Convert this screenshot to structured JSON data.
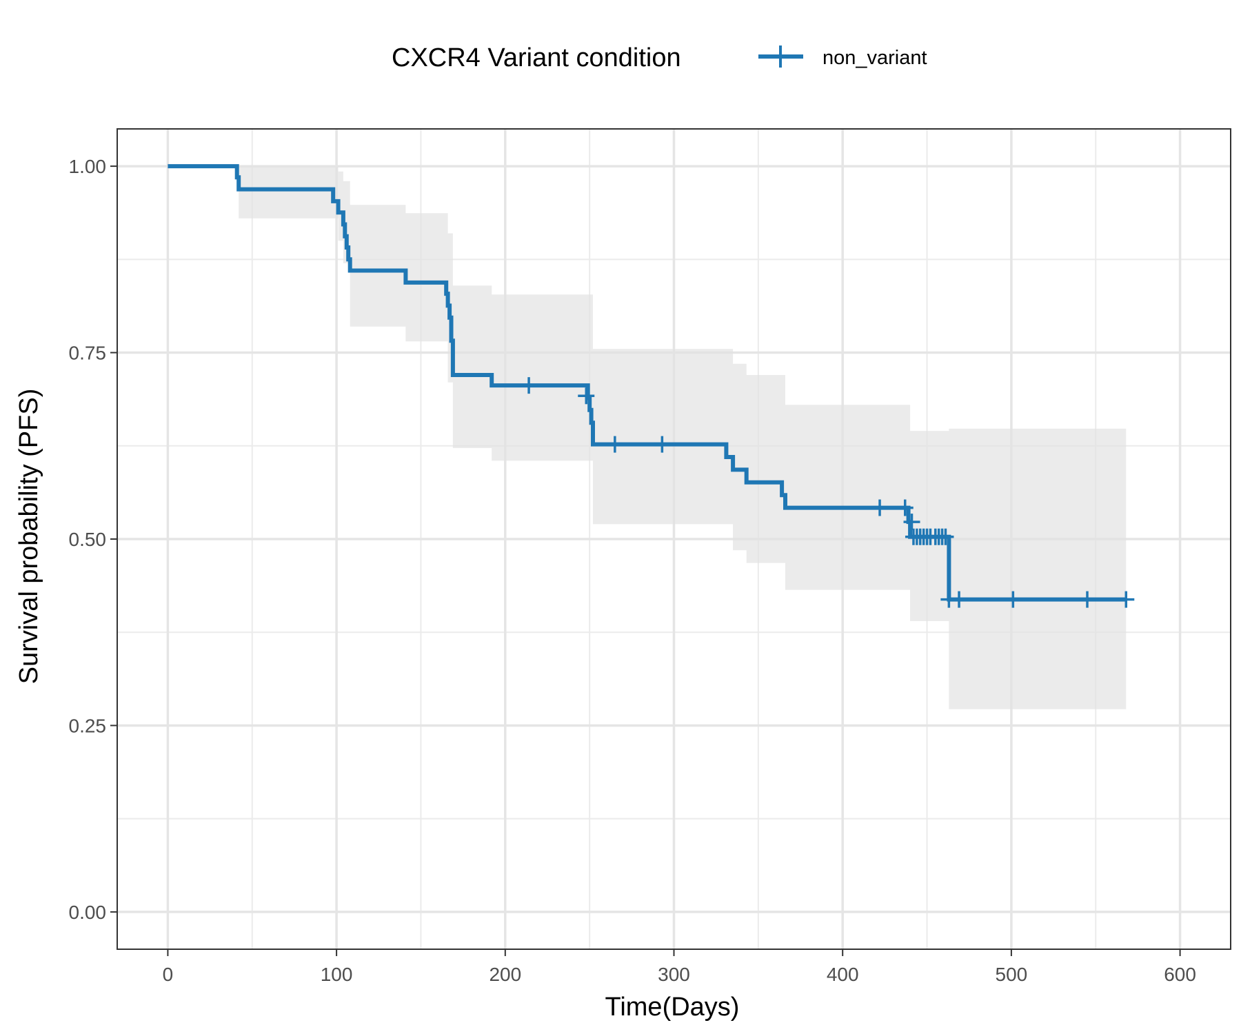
{
  "chart_data": {
    "type": "line",
    "subtype": "kaplan-meier-step",
    "xlabel": "Time(Days)",
    "ylabel": "Survival probability (PFS)",
    "xlim": [
      -30,
      630
    ],
    "ylim": [
      -0.05,
      1.05
    ],
    "x_ticks": [
      0,
      100,
      200,
      300,
      400,
      500,
      600
    ],
    "x_tick_labels": [
      "0",
      "100",
      "200",
      "300",
      "400",
      "500",
      "600"
    ],
    "y_ticks": [
      0,
      0.25,
      0.5,
      0.75,
      1.0
    ],
    "y_tick_labels": [
      "0.00",
      "0.25",
      "0.50",
      "0.75",
      "1.00"
    ],
    "grid": true,
    "legend": {
      "title": "CXCR4 Variant condition",
      "position": "top",
      "entries": [
        {
          "label": "non_variant",
          "color": "#1f77b4"
        }
      ]
    },
    "series": [
      {
        "name": "non_variant",
        "color": "#1f77b4",
        "steps": [
          [
            0,
            1.0
          ],
          [
            40,
            1.0
          ],
          [
            41,
            0.985
          ],
          [
            42,
            0.969
          ],
          [
            97,
            0.969
          ],
          [
            98,
            0.953
          ],
          [
            101,
            0.938
          ],
          [
            104,
            0.922
          ],
          [
            105,
            0.906
          ],
          [
            106,
            0.891
          ],
          [
            107,
            0.875
          ],
          [
            108,
            0.86
          ],
          [
            140,
            0.86
          ],
          [
            141,
            0.844
          ],
          [
            164,
            0.844
          ],
          [
            165,
            0.829
          ],
          [
            166,
            0.813
          ],
          [
            167,
            0.797
          ],
          [
            168,
            0.766
          ],
          [
            169,
            0.72
          ],
          [
            191,
            0.72
          ],
          [
            192,
            0.706
          ],
          [
            248,
            0.706
          ],
          [
            249,
            0.689
          ],
          [
            250,
            0.673
          ],
          [
            251,
            0.656
          ],
          [
            252,
            0.627
          ],
          [
            330,
            0.627
          ],
          [
            331,
            0.61
          ],
          [
            335,
            0.593
          ],
          [
            343,
            0.576
          ],
          [
            363,
            0.576
          ],
          [
            364,
            0.559
          ],
          [
            366,
            0.542
          ],
          [
            437,
            0.542
          ],
          [
            439,
            0.523
          ],
          [
            440,
            0.503
          ],
          [
            462,
            0.503
          ],
          [
            463,
            0.419
          ],
          [
            568,
            0.419
          ]
        ],
        "ci_band": [
          [
            0,
            1.0,
            1.0
          ],
          [
            40,
            1.0,
            1.0
          ],
          [
            42,
            0.93,
            1.0
          ],
          [
            97,
            0.93,
            1.0
          ],
          [
            101,
            0.9,
            0.993
          ],
          [
            104,
            0.87,
            0.98
          ],
          [
            108,
            0.785,
            0.948
          ],
          [
            140,
            0.785,
            0.948
          ],
          [
            141,
            0.765,
            0.937
          ],
          [
            164,
            0.765,
            0.937
          ],
          [
            166,
            0.71,
            0.91
          ],
          [
            169,
            0.622,
            0.84
          ],
          [
            191,
            0.622,
            0.84
          ],
          [
            192,
            0.605,
            0.828
          ],
          [
            248,
            0.605,
            0.828
          ],
          [
            252,
            0.52,
            0.755
          ],
          [
            330,
            0.52,
            0.755
          ],
          [
            335,
            0.485,
            0.735
          ],
          [
            343,
            0.468,
            0.72
          ],
          [
            363,
            0.468,
            0.72
          ],
          [
            366,
            0.432,
            0.68
          ],
          [
            437,
            0.432,
            0.68
          ],
          [
            440,
            0.39,
            0.645
          ],
          [
            462,
            0.39,
            0.645
          ],
          [
            463,
            0.272,
            0.648
          ],
          [
            568,
            0.272,
            0.648
          ]
        ],
        "censored": [
          [
            214,
            0.706
          ],
          [
            248,
            0.692
          ],
          [
            265,
            0.627
          ],
          [
            293,
            0.627
          ],
          [
            422,
            0.542
          ],
          [
            437,
            0.542
          ],
          [
            441,
            0.523
          ],
          [
            442,
            0.503
          ],
          [
            444,
            0.503
          ],
          [
            446,
            0.503
          ],
          [
            448,
            0.503
          ],
          [
            450,
            0.503
          ],
          [
            452,
            0.503
          ],
          [
            455,
            0.503
          ],
          [
            457,
            0.503
          ],
          [
            459,
            0.503
          ],
          [
            461,
            0.503
          ],
          [
            463,
            0.419
          ],
          [
            469,
            0.419
          ],
          [
            501,
            0.419
          ],
          [
            545,
            0.419
          ],
          [
            568,
            0.419
          ]
        ]
      }
    ]
  }
}
